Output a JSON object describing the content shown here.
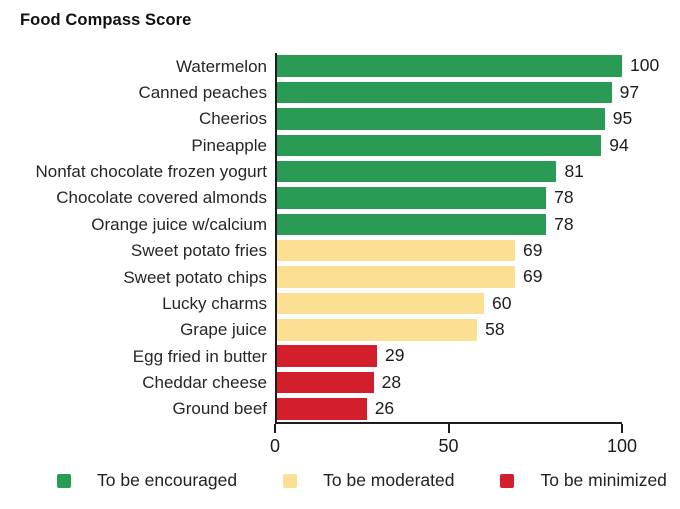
{
  "header": {
    "title": "Food Compass Score"
  },
  "chart_data": {
    "type": "bar",
    "orientation": "horizontal",
    "title": "Food Compass Score",
    "xlabel": "",
    "ylabel": "",
    "xlim": [
      0,
      100
    ],
    "xticks": [
      0,
      50,
      100
    ],
    "grid": false,
    "legend_position": "bottom",
    "axis_color": "#1c1c1c",
    "categories": [
      "Watermelon",
      "Canned peaches",
      "Cheerios",
      "Pineapple",
      "Nonfat chocolate frozen yogurt",
      "Chocolate covered almonds",
      "Orange juice w/calcium",
      "Sweet potato fries",
      "Sweet potato chips",
      "Lucky charms",
      "Grape juice",
      "Egg fried in butter",
      "Cheddar cheese",
      "Ground beef"
    ],
    "values": [
      100,
      97,
      95,
      94,
      81,
      78,
      78,
      69,
      69,
      60,
      58,
      29,
      28,
      26
    ],
    "groups": [
      "encouraged",
      "encouraged",
      "encouraged",
      "encouraged",
      "encouraged",
      "encouraged",
      "encouraged",
      "moderated",
      "moderated",
      "moderated",
      "moderated",
      "minimized",
      "minimized",
      "minimized"
    ],
    "group_colors": {
      "encouraged": "#2a9b55",
      "moderated": "#fbdf92",
      "minimized": "#d21f2b"
    },
    "legend": [
      {
        "label": "To be encouraged",
        "group": "encouraged",
        "color": "#2a9b55"
      },
      {
        "label": "To be moderated",
        "group": "moderated",
        "color": "#fbdf92"
      },
      {
        "label": "To be minimized",
        "group": "minimized",
        "color": "#d21f2b"
      }
    ]
  }
}
